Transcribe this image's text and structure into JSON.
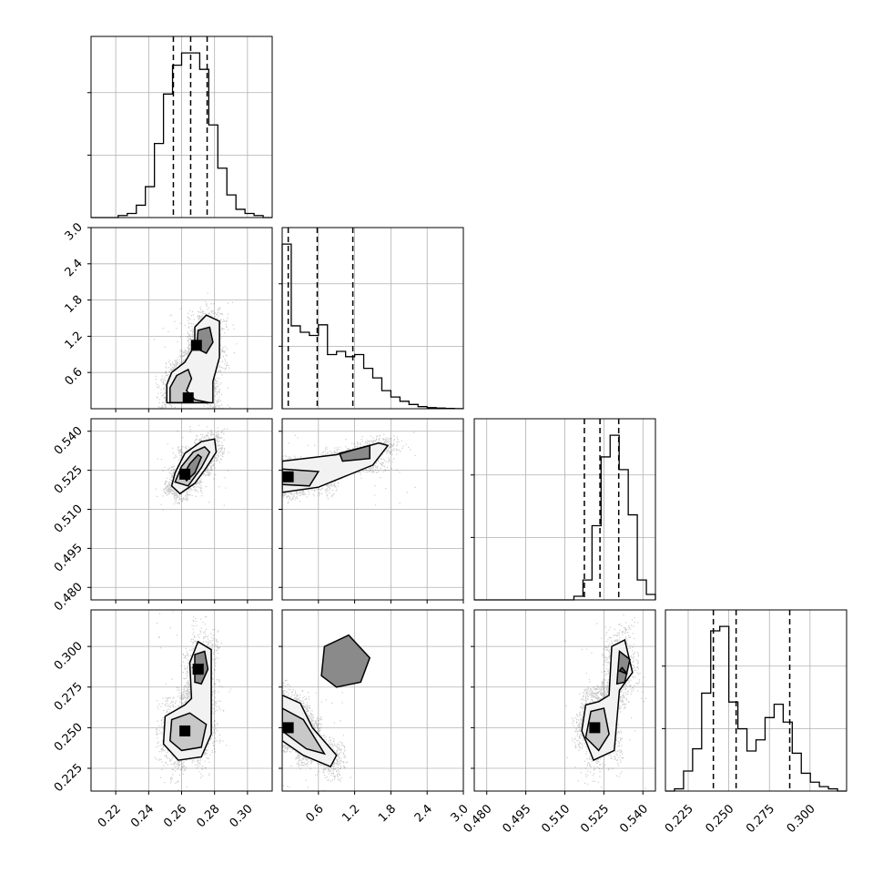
{
  "chart_data": {
    "type": "corner",
    "grid": true,
    "parameters": [
      {
        "ticks": [
          0.22,
          0.24,
          0.26,
          0.28,
          0.3
        ],
        "tick_labels": [
          "0.22",
          "0.24",
          "0.26",
          "0.28",
          "0.30"
        ],
        "range": [
          0.205,
          0.315
        ],
        "quantiles": [
          0.255,
          0.2655,
          0.2755
        ],
        "hist_counts": [
          0,
          0,
          0,
          1,
          2,
          6,
          15,
          36,
          60,
          74,
          80,
          80,
          72,
          45,
          24,
          11,
          4,
          2,
          1,
          0
        ]
      },
      {
        "ticks": [
          0.6,
          1.2,
          1.8,
          2.4,
          3.0
        ],
        "tick_labels": [
          "0.6",
          "1.2",
          "1.8",
          "2.4",
          "3.0"
        ],
        "range": [
          0.0,
          3.0
        ],
        "quantiles": [
          0.1,
          0.58,
          1.17
        ],
        "hist_counts": [
          155,
          78,
          72,
          69,
          79,
          51,
          54,
          49,
          51,
          38,
          29,
          17,
          11,
          7,
          4,
          2,
          1,
          0.6,
          0.3,
          0.1
        ]
      },
      {
        "ticks": [
          0.48,
          0.495,
          0.51,
          0.525,
          0.54
        ],
        "tick_labels": [
          "0.480",
          "0.495",
          "0.510",
          "0.525",
          "0.540"
        ],
        "range": [
          0.4752,
          0.5448
        ],
        "quantiles": [
          0.5175,
          0.5235,
          0.5307
        ],
        "hist_counts": [
          0,
          0,
          0,
          0,
          0,
          0,
          0,
          0,
          0,
          0,
          0,
          2,
          11,
          41,
          79,
          91,
          72,
          47,
          11,
          3
        ]
      },
      {
        "ticks": [
          0.225,
          0.25,
          0.275,
          0.3
        ],
        "tick_labels": [
          "0.225",
          "0.250",
          "0.275",
          "0.300"
        ],
        "range": [
          0.211,
          0.3225
        ],
        "quantiles": [
          0.2405,
          0.2545,
          0.2875
        ],
        "hist_counts": [
          0,
          1,
          9,
          19,
          44,
          72,
          74,
          40,
          28,
          18,
          23,
          33,
          39,
          31,
          17,
          8,
          4,
          2,
          1,
          0
        ]
      }
    ],
    "pairs": [
      {
        "x": 0,
        "y": 1,
        "peaks": [
          [
            0.264,
            0.18
          ],
          [
            0.269,
            1.05
          ]
        ],
        "contours": [
          [
            [
              0.251,
              0.1
            ],
            [
              0.251,
              0.4
            ],
            [
              0.254,
              0.6
            ],
            [
              0.262,
              0.77
            ],
            [
              0.268,
              1.05
            ],
            [
              0.268,
              1.35
            ],
            [
              0.275,
              1.55
            ],
            [
              0.283,
              1.45
            ],
            [
              0.283,
              0.85
            ],
            [
              0.279,
              0.45
            ],
            [
              0.279,
              0.1
            ]
          ],
          [
            [
              0.253,
              0.1
            ],
            [
              0.253,
              0.35
            ],
            [
              0.257,
              0.55
            ],
            [
              0.264,
              0.65
            ],
            [
              0.266,
              0.5
            ],
            [
              0.263,
              0.3
            ],
            [
              0.268,
              0.15
            ],
            [
              0.277,
              0.1
            ]
          ],
          [
            [
              0.269,
              1.0
            ],
            [
              0.27,
              1.3
            ],
            [
              0.277,
              1.35
            ],
            [
              0.279,
              1.1
            ],
            [
              0.275,
              0.92
            ],
            [
              0.269,
              1.0
            ]
          ]
        ]
      },
      {
        "x": 0,
        "y": 2,
        "peaks": [
          [
            0.262,
            0.5235
          ]
        ],
        "contours": [
          [
            [
              0.254,
              0.519
            ],
            [
              0.256,
              0.524
            ],
            [
              0.262,
              0.5315
            ],
            [
              0.272,
              0.536
            ],
            [
              0.28,
              0.537
            ],
            [
              0.281,
              0.532
            ],
            [
              0.275,
              0.526
            ],
            [
              0.268,
              0.52
            ],
            [
              0.259,
              0.516
            ],
            [
              0.254,
              0.519
            ]
          ],
          [
            [
              0.256,
              0.5205
            ],
            [
              0.26,
              0.5265
            ],
            [
              0.267,
              0.532
            ],
            [
              0.274,
              0.534
            ],
            [
              0.277,
              0.532
            ],
            [
              0.272,
              0.526
            ],
            [
              0.264,
              0.519
            ],
            [
              0.256,
              0.5205
            ]
          ],
          [
            [
              0.261,
              0.523
            ],
            [
              0.265,
              0.5275
            ],
            [
              0.27,
              0.531
            ],
            [
              0.272,
              0.53
            ],
            [
              0.268,
              0.524
            ],
            [
              0.263,
              0.521
            ],
            [
              0.261,
              0.523
            ]
          ]
        ]
      },
      {
        "x": 0,
        "y": 3,
        "peaks": [
          [
            0.262,
            0.248
          ],
          [
            0.27,
            0.286
          ]
        ],
        "contours": [
          [
            [
              0.258,
              0.23
            ],
            [
              0.249,
              0.24
            ],
            [
              0.25,
              0.257
            ],
            [
              0.262,
              0.264
            ],
            [
              0.266,
              0.268
            ],
            [
              0.265,
              0.29
            ],
            [
              0.27,
              0.303
            ],
            [
              0.278,
              0.298
            ],
            [
              0.278,
              0.27
            ],
            [
              0.278,
              0.246
            ],
            [
              0.272,
              0.232
            ],
            [
              0.258,
              0.23
            ]
          ],
          [
            [
              0.253,
              0.242
            ],
            [
              0.254,
              0.255
            ],
            [
              0.265,
              0.259
            ],
            [
              0.275,
              0.252
            ],
            [
              0.272,
              0.238
            ],
            [
              0.26,
              0.236
            ],
            [
              0.253,
              0.242
            ]
          ],
          [
            [
              0.268,
              0.278
            ],
            [
              0.268,
              0.295
            ],
            [
              0.274,
              0.297
            ],
            [
              0.276,
              0.286
            ],
            [
              0.272,
              0.277
            ],
            [
              0.268,
              0.278
            ]
          ],
          [
            [
              0.267,
              0.287
            ],
            [
              0.273,
              0.289
            ],
            [
              0.273,
              0.284
            ],
            [
              0.267,
              0.287
            ]
          ]
        ]
      },
      {
        "x": 1,
        "y": 2,
        "peaks": [
          [
            0.1,
            0.5225
          ]
        ],
        "contours": [
          [
            [
              0.0,
              0.5165
            ],
            [
              0.0,
              0.5285
            ],
            [
              0.9,
              0.531
            ],
            [
              1.6,
              0.5355
            ],
            [
              1.75,
              0.5345
            ],
            [
              1.5,
              0.527
            ],
            [
              0.6,
              0.5185
            ],
            [
              0.0,
              0.5165
            ]
          ],
          [
            [
              0.0,
              0.5195
            ],
            [
              0.0,
              0.5255
            ],
            [
              0.6,
              0.5245
            ],
            [
              0.45,
              0.519
            ],
            [
              0.0,
              0.5195
            ]
          ],
          [
            [
              0.95,
              0.5315
            ],
            [
              1.45,
              0.5345
            ],
            [
              1.45,
              0.5295
            ],
            [
              1.0,
              0.5285
            ],
            [
              0.95,
              0.5315
            ]
          ]
        ]
      },
      {
        "x": 1,
        "y": 3,
        "peaks": [
          [
            0.1,
            0.25
          ]
        ],
        "contours": [
          [
            [
              0.0,
              0.27
            ],
            [
              0.3,
              0.265
            ],
            [
              0.5,
              0.25
            ],
            [
              0.9,
              0.233
            ],
            [
              0.8,
              0.226
            ],
            [
              0.35,
              0.233
            ],
            [
              0.0,
              0.242
            ]
          ],
          [
            [
              0.0,
              0.262
            ],
            [
              0.35,
              0.255
            ],
            [
              0.7,
              0.234
            ],
            [
              0.4,
              0.237
            ],
            [
              0.0,
              0.248
            ]
          ],
          [
            [
              0.65,
              0.282
            ],
            [
              0.7,
              0.3
            ],
            [
              1.1,
              0.307
            ],
            [
              1.45,
              0.293
            ],
            [
              1.3,
              0.278
            ],
            [
              0.9,
              0.275
            ],
            [
              0.65,
              0.282
            ]
          ]
        ]
      },
      {
        "x": 2,
        "y": 3,
        "peaks": [
          [
            0.5215,
            0.25
          ]
        ],
        "contours": [
          [
            [
              0.5165,
              0.248
            ],
            [
              0.518,
              0.264
            ],
            [
              0.523,
              0.266
            ],
            [
              0.527,
              0.27
            ],
            [
              0.528,
              0.3
            ],
            [
              0.533,
              0.304
            ],
            [
              0.536,
              0.284
            ],
            [
              0.531,
              0.273
            ],
            [
              0.529,
              0.236
            ],
            [
              0.521,
              0.23
            ],
            [
              0.5165,
              0.248
            ]
          ],
          [
            [
              0.518,
              0.244
            ],
            [
              0.52,
              0.26
            ],
            [
              0.525,
              0.262
            ],
            [
              0.527,
              0.246
            ],
            [
              0.523,
              0.236
            ],
            [
              0.518,
              0.244
            ]
          ],
          [
            [
              0.53,
              0.277
            ],
            [
              0.531,
              0.297
            ],
            [
              0.535,
              0.292
            ],
            [
              0.533,
              0.278
            ],
            [
              0.53,
              0.277
            ]
          ],
          [
            [
              0.531,
              0.285
            ],
            [
              0.534,
              0.283
            ],
            [
              0.532,
              0.287
            ],
            [
              0.531,
              0.285
            ]
          ]
        ]
      }
    ]
  }
}
